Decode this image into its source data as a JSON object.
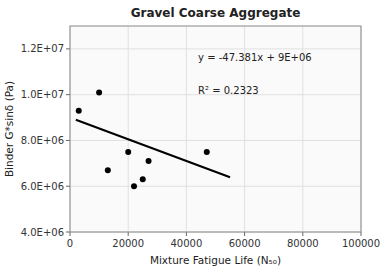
{
  "chart_data": {
    "type": "scatter",
    "title": "Gravel Coarse Aggregate",
    "x_label": "Mixture Fatigue Life (N₅₀)",
    "y_label": "Binder G*sinδ (Pa)",
    "series": [
      {
        "type": "scatter",
        "color": "black",
        "marker": "circle",
        "x": [
          3000,
          10000,
          13000,
          20000,
          22000,
          25000,
          27000,
          47000
        ],
        "values": [
          9300000,
          10100000,
          6700000,
          7500000,
          6000000,
          6300000,
          7100000,
          7500000
        ]
      },
      {
        "type": "line",
        "color": "black",
        "line_style": "solid",
        "x": [
          2000,
          55000
        ],
        "values": [
          8905238,
          6394045
        ]
      }
    ],
    "annotations": [
      "y = -47.381x + 9E+06",
      "R² = 0.2323"
    ],
    "xlim": [
      0,
      100000
    ],
    "ylim": [
      4000000,
      13000000
    ],
    "xticks": [
      0,
      20000,
      40000,
      60000,
      80000,
      100000
    ],
    "yticks": [
      {
        "value": 4000000,
        "label": "4.0E+06"
      },
      {
        "value": 6000000,
        "label": "6.0E+06"
      },
      {
        "value": 8000000,
        "label": "8.0E+06"
      },
      {
        "value": 10000000,
        "label": "1.0E+07"
      },
      {
        "value": 12000000,
        "label": "1.2E+07"
      }
    ],
    "grid": true
  }
}
